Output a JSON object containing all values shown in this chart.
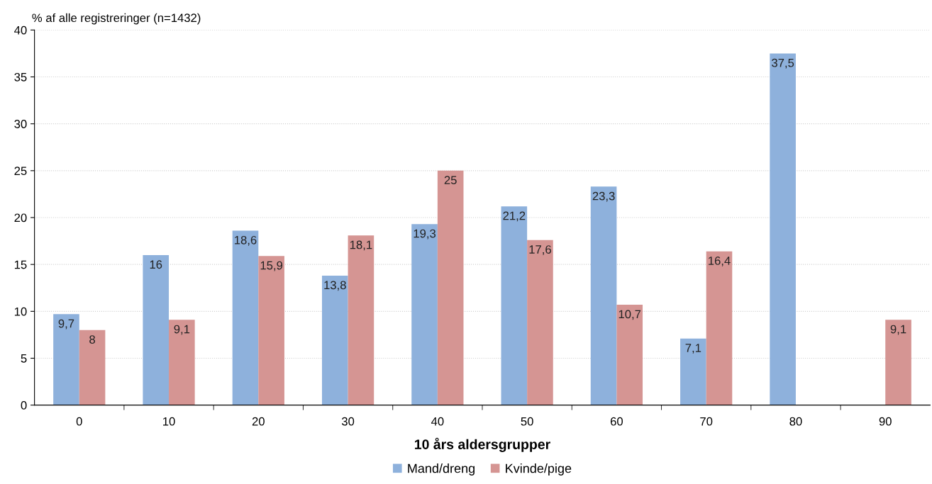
{
  "chart_data": {
    "type": "bar",
    "ylabel": "% af alle registreringer (n=1432)",
    "xlabel": "10 års aldersgrupper",
    "categories": [
      "0",
      "10",
      "20",
      "30",
      "40",
      "50",
      "60",
      "70",
      "80",
      "90"
    ],
    "series": [
      {
        "name": "Mand/dreng",
        "color": "#8eb1dc",
        "values": [
          9.7,
          16,
          18.6,
          13.8,
          19.3,
          21.2,
          23.3,
          7.1,
          37.5,
          null
        ],
        "value_labels": [
          "9,7",
          "16",
          "18,6",
          "13,8",
          "19,3",
          "21,2",
          "23,3",
          "7,1",
          "37,5",
          null
        ]
      },
      {
        "name": "Kvinde/pige",
        "color": "#d59593",
        "values": [
          8,
          9.1,
          15.9,
          18.1,
          25,
          17.6,
          10.7,
          16.4,
          null,
          9.1
        ],
        "value_labels": [
          "8",
          "9,1",
          "15,9",
          "18,1",
          "25",
          "17,6",
          "10,7",
          "16,4",
          null,
          "9,1"
        ]
      }
    ],
    "ylim": [
      0,
      40
    ],
    "yticks": [
      0,
      5,
      10,
      15,
      20,
      25,
      30,
      35,
      40
    ],
    "grid": "y",
    "legend": "bottom"
  }
}
